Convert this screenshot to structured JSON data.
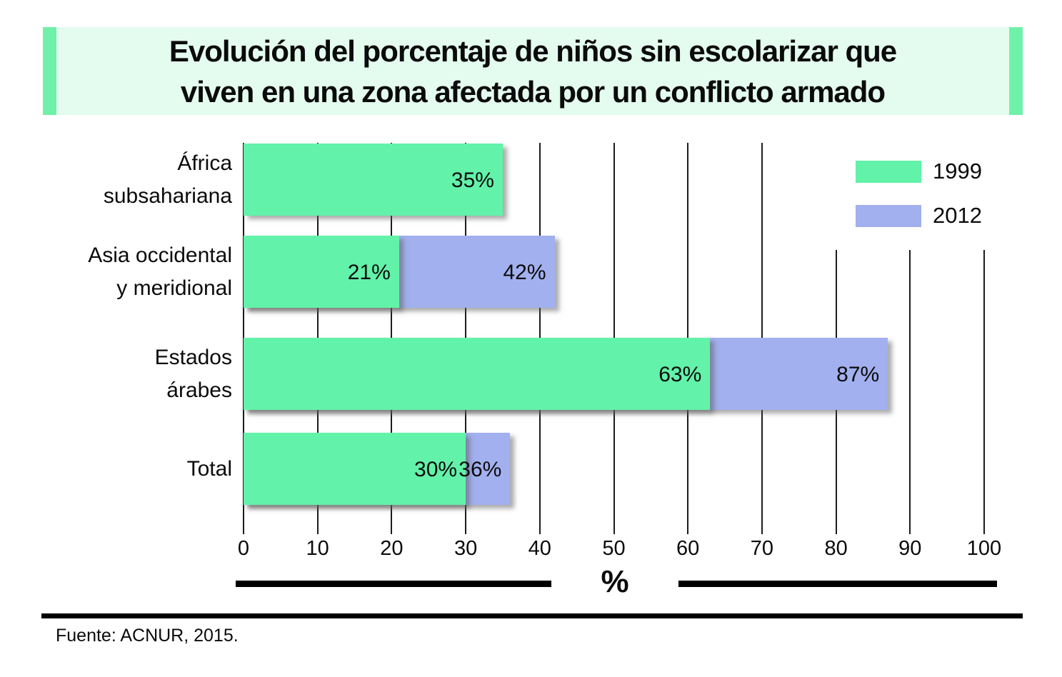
{
  "title": {
    "line1": "Evolución del porcentaje de niños sin escolarizar que",
    "line2": "viven en una zona afectada por un conflicto armado"
  },
  "theme": {
    "title_bg": "#E4FBEF",
    "title_accent": "#70F1A9",
    "series_1999_color": "#62F2A9",
    "series_2012_color": "#A2B0EF",
    "gridline_color": "#1c1c1c",
    "text_color": "#0b0b0b"
  },
  "chart_data": {
    "type": "bar",
    "orientation": "horizontal",
    "title": "Evolución del porcentaje de niños sin escolarizar que viven en una zona afectada por un conflicto armado",
    "categories": [
      "África subsahariana",
      "Asia occidental y meridional",
      "Estados árabes",
      "Total"
    ],
    "category_lines": [
      [
        "África",
        "subsahariana"
      ],
      [
        "Asia occidental",
        "y meridional"
      ],
      [
        "Estados",
        "árabes"
      ],
      [
        "Total"
      ]
    ],
    "series": [
      {
        "name": "1999",
        "color": "#62F2A9",
        "values": [
          35,
          21,
          63,
          30
        ],
        "labels": [
          "35%",
          "21%",
          "63%",
          "30%"
        ]
      },
      {
        "name": "2012",
        "color": "#A2B0EF",
        "values": [
          null,
          42,
          87,
          36
        ],
        "labels": [
          null,
          "42%",
          "87%",
          "36%"
        ]
      }
    ],
    "xlabel": "%",
    "xlim": [
      0,
      100
    ],
    "xticks": [
      0,
      10,
      20,
      30,
      40,
      50,
      60,
      70,
      80,
      90,
      100
    ],
    "grid": "vertical",
    "legend_position": "top-right"
  },
  "footer": {
    "source": "Fuente: ACNUR, 2015."
  }
}
